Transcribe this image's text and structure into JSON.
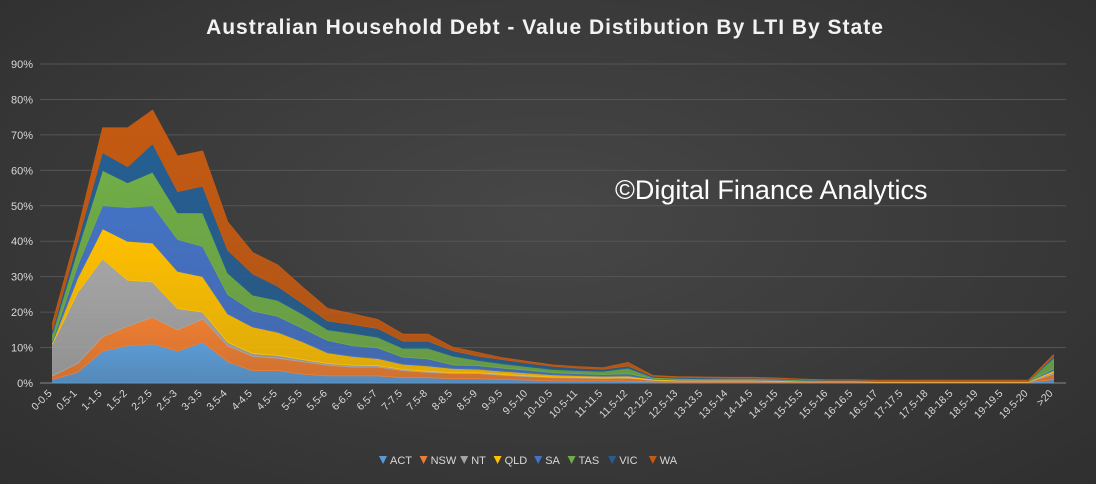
{
  "chart_data": {
    "type": "area",
    "stacked": true,
    "title": "Australian Household Debt - Value Distibution By LTI By State",
    "watermark": "©Digital Finance Analytics",
    "categories": [
      "0-0.5",
      "0.5-1",
      "1-1.5",
      "1.5-2",
      "2-2.5",
      "2.5-3",
      "3-3.5",
      "3.5-4",
      "4-4.5",
      "4.5-5",
      "5-5.5",
      "5.5-6",
      "6-6.5",
      "6.5-7",
      "7-7.5",
      "7.5-8",
      "8-8.5",
      "8.5-9",
      "9-9.5",
      "9.5-10",
      "10-10.5",
      "10.5-11",
      "11-11.5",
      "11.5-12",
      "12-12.5",
      "12.5-13",
      "13-13.5",
      "13.5-14",
      "14-14.5",
      "14.5-15",
      "15-15.5",
      "15.5-16",
      "16-16.5",
      "16.5-17",
      "17-17.5",
      "17.5-18",
      "18-18.5",
      "18.5-19",
      "19-19.5",
      "19.5-20",
      ">20"
    ],
    "ylim": [
      0,
      90
    ],
    "yticks": [
      "0%",
      "10%",
      "20%",
      "30%",
      "40%",
      "50%",
      "60%",
      "70%",
      "80%",
      "90%"
    ],
    "grid": true,
    "legend_position": "bottom",
    "series": [
      {
        "name": "ACT",
        "color": "#5b9bd5",
        "values": [
          1,
          3,
          9,
          10.5,
          11,
          9,
          11.5,
          6,
          3.5,
          3.5,
          2.5,
          2,
          2,
          2,
          1.5,
          1.5,
          1.2,
          1.2,
          1,
          0.8,
          0.6,
          0.6,
          0.6,
          0.5,
          0.3,
          0.2,
          0.2,
          0.2,
          0.2,
          0.2,
          0.1,
          0.1,
          0.1,
          0.1,
          0.1,
          0.1,
          0.1,
          0.1,
          0.1,
          0.1,
          1
        ]
      },
      {
        "name": "NSW",
        "color": "#ed7d31",
        "values": [
          1,
          2.5,
          4,
          5.5,
          7.5,
          6,
          6.5,
          4.5,
          4,
          3.5,
          3.5,
          3,
          2.5,
          2.5,
          2,
          1.5,
          1.5,
          1.5,
          1.2,
          1,
          0.9,
          0.8,
          0.7,
          0.9,
          0.4,
          0.3,
          0.3,
          0.3,
          0.3,
          0.2,
          0.2,
          0.2,
          0.2,
          0.1,
          0.1,
          0.1,
          0.1,
          0.1,
          0.1,
          0.1,
          1.5
        ]
      },
      {
        "name": "NT",
        "color": "#a5a5a5",
        "values": [
          9,
          20,
          22,
          13,
          10,
          6,
          2,
          1,
          0.8,
          0.8,
          0.6,
          0.5,
          0.5,
          0.4,
          0.3,
          0.3,
          0.2,
          0.2,
          0.2,
          0.2,
          0.2,
          0.2,
          0.1,
          0.1,
          0.1,
          0.1,
          0.1,
          0.1,
          0.1,
          0.1,
          0.1,
          0.1,
          0.1,
          0.1,
          0.1,
          0.1,
          0.1,
          0.1,
          0.1,
          0.1,
          0.5
        ]
      },
      {
        "name": "QLD",
        "color": "#ffc000",
        "values": [
          0.5,
          4,
          8.5,
          11,
          11,
          10.5,
          10,
          8,
          7.5,
          6.5,
          5,
          3,
          2.5,
          2,
          1.5,
          1.5,
          1.2,
          1,
          0.9,
          0.8,
          0.6,
          0.5,
          0.5,
          0.5,
          0.3,
          0.2,
          0.2,
          0.2,
          0.2,
          0.2,
          0.1,
          0.1,
          0.1,
          0.1,
          0.1,
          0.1,
          0.1,
          0.1,
          0.1,
          0.1,
          0.5
        ]
      },
      {
        "name": "SA",
        "color": "#4472c4",
        "values": [
          0.5,
          3.5,
          6.5,
          9.5,
          10.5,
          9,
          8.5,
          5.5,
          4.5,
          4.5,
          3.8,
          3.5,
          3,
          3,
          2,
          2,
          1,
          1,
          0.9,
          0.8,
          0.6,
          0.5,
          0.5,
          0.6,
          0.2,
          0.2,
          0.2,
          0.2,
          0.2,
          0.2,
          0.1,
          0.1,
          0.1,
          0.1,
          0.1,
          0.1,
          0.1,
          0.1,
          0.1,
          0.1,
          0.5
        ]
      },
      {
        "name": "TAS",
        "color": "#70ad47",
        "values": [
          2,
          4.5,
          10,
          7,
          9.5,
          7.5,
          9.5,
          6,
          4.5,
          4.5,
          4,
          3,
          3.5,
          3,
          2.5,
          3,
          2.5,
          1.5,
          1.2,
          1,
          0.9,
          0.9,
          0.9,
          1.6,
          0.3,
          0.3,
          0.2,
          0.2,
          0.2,
          0.2,
          0.2,
          0.1,
          0.1,
          0.1,
          0.1,
          0.1,
          0.1,
          0.1,
          0.1,
          0.1,
          3
        ]
      },
      {
        "name": "VIC",
        "color": "#255e91",
        "values": [
          1,
          2.5,
          5,
          4.5,
          8,
          6,
          7.5,
          6.5,
          6,
          4,
          3,
          2.5,
          2.5,
          2.5,
          2,
          2,
          1.5,
          1.2,
          1.2,
          1,
          0.9,
          0.7,
          0.6,
          0.6,
          0.3,
          0.3,
          0.3,
          0.2,
          0.2,
          0.2,
          0.2,
          0.1,
          0.1,
          0.1,
          0.1,
          0.1,
          0.1,
          0.1,
          0.1,
          0.1,
          0.5
        ]
      },
      {
        "name": "WA",
        "color": "#c55a11",
        "values": [
          2,
          3,
          7,
          11,
          9.5,
          10,
          10,
          8,
          6,
          6,
          4.6,
          3.5,
          3,
          2.5,
          2,
          2,
          1,
          1,
          0.5,
          0.5,
          0.4,
          0.4,
          0.4,
          1,
          0.2,
          0.2,
          0.2,
          0.2,
          0.2,
          0.1,
          0.1,
          0.1,
          0.1,
          0.1,
          0.1,
          0.1,
          0.1,
          0.1,
          0.1,
          0.1,
          0.5
        ]
      }
    ]
  }
}
